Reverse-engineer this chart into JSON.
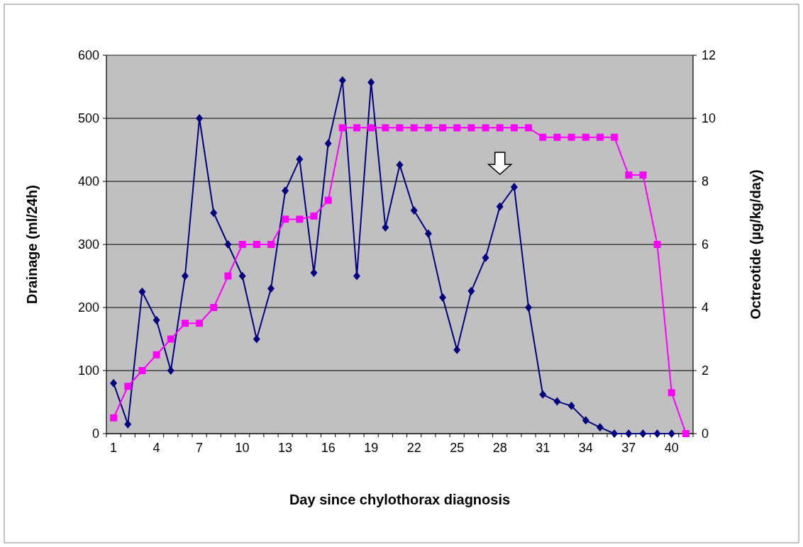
{
  "chart_data": {
    "type": "line",
    "xlabel": "Day since chylothorax diagnosis",
    "ylabel": "Drainage (ml/24h)",
    "y2label": "Octreotide (µg/kg/day)",
    "categories": [
      "1",
      null,
      null,
      "4",
      null,
      null,
      "7",
      null,
      null,
      "10",
      null,
      null,
      "13",
      null,
      null,
      "16",
      null,
      null,
      "19",
      null,
      null,
      "22",
      null,
      null,
      "25",
      null,
      null,
      "28",
      null,
      null,
      "31",
      null,
      null,
      "34",
      null,
      null,
      "37",
      null,
      null,
      "40",
      null
    ],
    "series": [
      {
        "color": "#000080",
        "marker": "diamond",
        "values": [
          80,
          15,
          225,
          180,
          100,
          250,
          500,
          350,
          300,
          250,
          150,
          230,
          385,
          435,
          255,
          460,
          560,
          250,
          557,
          327,
          426,
          354,
          317,
          216,
          133,
          226,
          279,
          360,
          391,
          200,
          62,
          51,
          44,
          21,
          10,
          0,
          0,
          0,
          0,
          0,
          null
        ]
      },
      {
        "color": "#ff00ff",
        "marker": "square",
        "axis": "y2",
        "values": [
          0.5,
          1.5,
          2,
          2.5,
          3,
          3.5,
          3.5,
          4,
          5,
          6,
          6,
          6,
          6.8,
          6.8,
          6.9,
          7.4,
          9.7,
          9.7,
          9.7,
          9.7,
          9.7,
          9.7,
          9.7,
          9.7,
          9.7,
          9.7,
          9.7,
          9.7,
          9.7,
          9.7,
          9.4,
          9.4,
          9.4,
          9.4,
          9.4,
          9.4,
          8.2,
          8.2,
          6,
          1.3,
          0
        ]
      }
    ],
    "ylim": [
      0,
      600
    ],
    "yticks": [
      0,
      100,
      200,
      300,
      400,
      500,
      600
    ],
    "y2lim": [
      0,
      12
    ],
    "y2ticks": [
      0,
      2,
      4,
      6,
      8,
      10,
      12
    ],
    "grid": "y"
  }
}
